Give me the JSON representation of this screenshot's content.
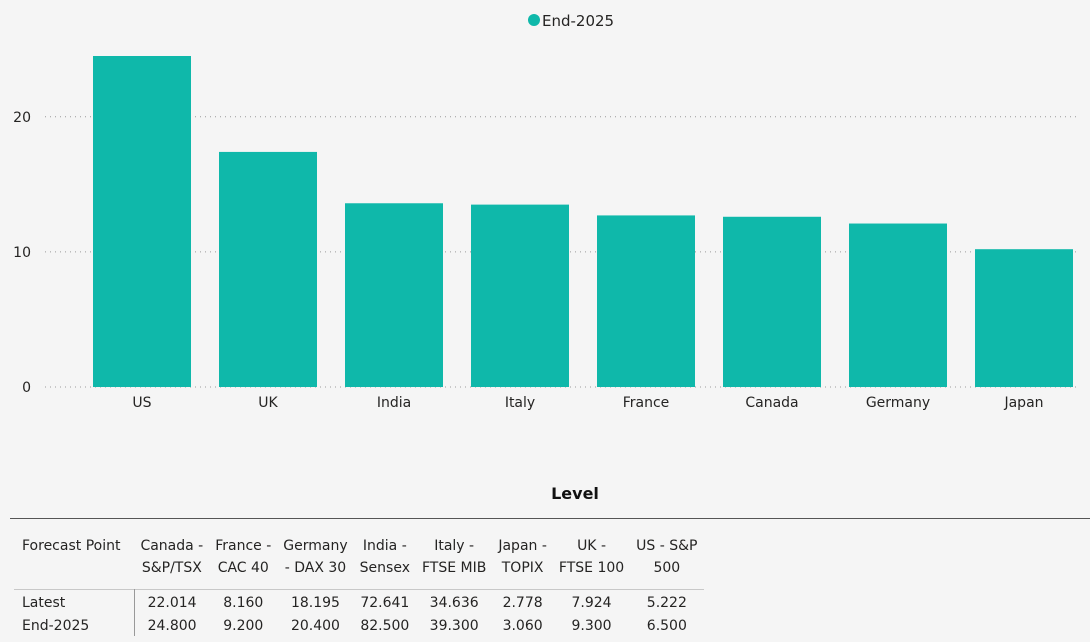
{
  "chart_data": {
    "type": "bar",
    "legend": {
      "position": "top-center",
      "items": [
        "End-2025"
      ]
    },
    "categories": [
      "US",
      "UK",
      "India",
      "Italy",
      "France",
      "Canada",
      "Germany",
      "Japan"
    ],
    "series": [
      {
        "name": "End-2025",
        "color": "#0fb8aa",
        "values": [
          24.5,
          17.4,
          13.6,
          13.5,
          12.7,
          12.6,
          12.1,
          10.2
        ]
      }
    ],
    "y_ticks": [
      "0",
      "10",
      "20"
    ],
    "ylim": [
      0,
      24.5
    ],
    "grid": "horizontal dotted"
  },
  "table": {
    "title": "Level",
    "columns": [
      [
        "Forecast Point"
      ],
      [
        "Canada -",
        "S&P/TSX"
      ],
      [
        "France -",
        "CAC 40"
      ],
      [
        "Germany",
        "- DAX 30"
      ],
      [
        "India -",
        "Sensex"
      ],
      [
        "Italy -",
        "FTSE MIB"
      ],
      [
        "Japan -",
        "TOPIX"
      ],
      [
        "UK -",
        "FTSE 100"
      ],
      [
        "US - S&P",
        "500"
      ]
    ],
    "rows": [
      [
        "Latest",
        "22.014",
        "8.160",
        "18.195",
        "72.641",
        "34.636",
        "2.778",
        "7.924",
        "5.222"
      ],
      [
        "End-2025",
        "24.800",
        "9.200",
        "20.400",
        "82.500",
        "39.300",
        "3.060",
        "9.300",
        "6.500"
      ]
    ]
  }
}
